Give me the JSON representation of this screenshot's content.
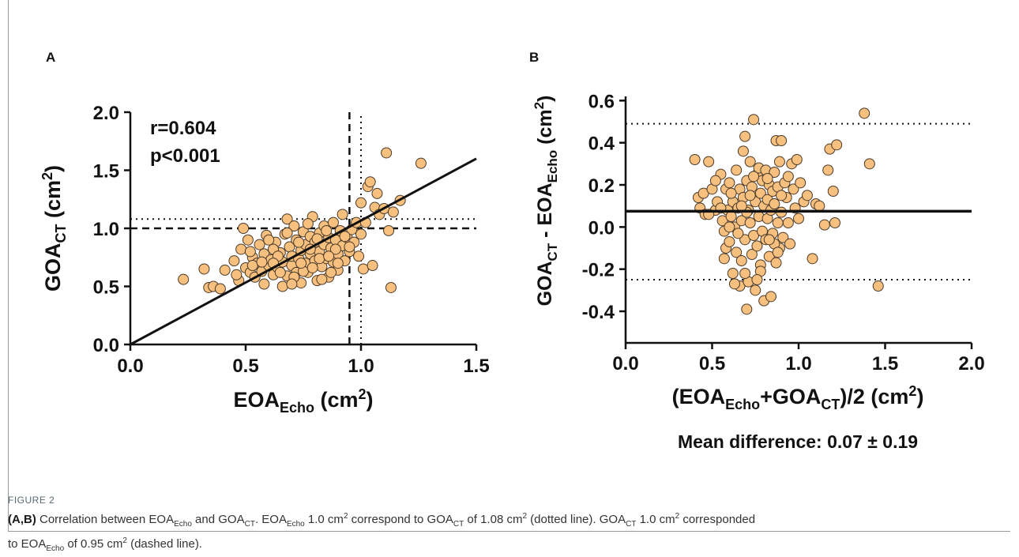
{
  "figure": {
    "label": "FIGURE 2",
    "caption_panels": "(A,B)",
    "caption_parts": {
      "p1": "Correlation between EOA",
      "p1_sub": "Echo",
      "p2": " and GOA",
      "p2_sub": "CT",
      "p3": ". EOA",
      "p3_sub": "Echo",
      "p4": " 1.0 cm",
      "p4_sup": "2",
      "p5": " correspond to GOA",
      "p5_sub": "CT",
      "p6": " of 1.08 cm",
      "p6_sup": "2",
      "p7": " (dotted line). GOA",
      "p7_sub": "CT",
      "p8": " 1.0 cm",
      "p8_sup": "2",
      "p9": " corresponded",
      "p10": "to EOA",
      "p10_sub": "Echo",
      "p11": " of 0.95 cm",
      "p11_sup": "2",
      "p12": " (dashed line)."
    }
  },
  "colors": {
    "point_fill": "#f7c07e",
    "point_stroke": "#4a3a2a",
    "axis": "#111111"
  },
  "chart_data": [
    {
      "panel": "A",
      "type": "scatter",
      "annotations": [
        "r=0.604",
        "p<0.001"
      ],
      "xlabel": {
        "main": "EOA",
        "sub": "Echo",
        "unit": " (cm",
        "sup": "2",
        "close": ")"
      },
      "ylabel": {
        "main": "GOA",
        "sub": "CT",
        "unit": " (cm",
        "sup": "2",
        "close": ")"
      },
      "xlim": [
        0,
        1.5
      ],
      "ylim": [
        0,
        2.0
      ],
      "xticks": [
        "0.0",
        "0.5",
        "1.0",
        "1.5"
      ],
      "yticks": [
        "0.0",
        "0.5",
        "1.0",
        "1.5",
        "2.0"
      ],
      "fit_line": [
        [
          0,
          0
        ],
        [
          1.5,
          1.6
        ]
      ],
      "dotted_lines": {
        "x": 1.0,
        "y": 1.08
      },
      "dashed_lines": {
        "x": 0.95,
        "y": 1.0
      },
      "points": [
        [
          0.23,
          0.56
        ],
        [
          0.32,
          0.65
        ],
        [
          0.34,
          0.49
        ],
        [
          0.36,
          0.5
        ],
        [
          0.39,
          0.48
        ],
        [
          0.41,
          0.64
        ],
        [
          0.45,
          0.72
        ],
        [
          0.47,
          0.55
        ],
        [
          0.48,
          0.82
        ],
        [
          0.49,
          1.0
        ],
        [
          0.5,
          0.66
        ],
        [
          0.51,
          0.9
        ],
        [
          0.52,
          0.62
        ],
        [
          0.53,
          0.75
        ],
        [
          0.54,
          0.58
        ],
        [
          0.55,
          0.7
        ],
        [
          0.56,
          0.86
        ],
        [
          0.57,
          0.63
        ],
        [
          0.58,
          0.78
        ],
        [
          0.59,
          0.94
        ],
        [
          0.6,
          0.68
        ],
        [
          0.61,
          0.73
        ],
        [
          0.62,
          0.6
        ],
        [
          0.63,
          0.88
        ],
        [
          0.64,
          0.66
        ],
        [
          0.65,
          0.79
        ],
        [
          0.66,
          0.71
        ],
        [
          0.67,
          0.95
        ],
        [
          0.68,
          1.08
        ],
        [
          0.68,
          0.59
        ],
        [
          0.69,
          0.84
        ],
        [
          0.7,
          0.68
        ],
        [
          0.7,
          0.76
        ],
        [
          0.71,
          1.02
        ],
        [
          0.72,
          0.9
        ],
        [
          0.72,
          0.62
        ],
        [
          0.73,
          0.74
        ],
        [
          0.74,
          0.53
        ],
        [
          0.74,
          0.81
        ],
        [
          0.75,
          0.97
        ],
        [
          0.76,
          0.7
        ],
        [
          0.76,
          0.86
        ],
        [
          0.77,
          0.62
        ],
        [
          0.78,
          0.93
        ],
        [
          0.78,
          0.78
        ],
        [
          0.79,
          1.1
        ],
        [
          0.8,
          0.72
        ],
        [
          0.8,
          0.88
        ],
        [
          0.81,
          0.55
        ],
        [
          0.82,
          0.96
        ],
        [
          0.82,
          0.8
        ],
        [
          0.83,
          0.67
        ],
        [
          0.84,
          1.02
        ],
        [
          0.84,
          0.86
        ],
        [
          0.85,
          0.74
        ],
        [
          0.86,
          0.92
        ],
        [
          0.86,
          0.58
        ],
        [
          0.87,
          0.83
        ],
        [
          0.88,
          1.05
        ],
        [
          0.88,
          0.71
        ],
        [
          0.89,
          0.9
        ],
        [
          0.9,
          0.78
        ],
        [
          0.9,
          0.64
        ],
        [
          0.91,
          0.98
        ],
        [
          0.92,
          0.85
        ],
        [
          0.92,
          1.12
        ],
        [
          0.93,
          0.72
        ],
        [
          0.94,
          0.92
        ],
        [
          0.95,
          0.8
        ],
        [
          0.96,
          0.99
        ],
        [
          0.97,
          0.88
        ],
        [
          0.98,
          1.05
        ],
        [
          0.99,
          0.76
        ],
        [
          1.0,
          0.95
        ],
        [
          1.0,
          1.22
        ],
        [
          1.01,
          0.65
        ],
        [
          1.02,
          1.05
        ],
        [
          1.03,
          1.36
        ],
        [
          1.04,
          1.4
        ],
        [
          1.05,
          0.68
        ],
        [
          1.06,
          1.18
        ],
        [
          1.07,
          1.3
        ],
        [
          1.08,
          1.12
        ],
        [
          1.1,
          1.17
        ],
        [
          1.11,
          1.65
        ],
        [
          1.12,
          0.98
        ],
        [
          1.13,
          0.49
        ],
        [
          1.14,
          1.14
        ],
        [
          1.17,
          1.24
        ],
        [
          1.26,
          1.56
        ],
        [
          0.58,
          0.52
        ],
        [
          0.62,
          0.82
        ],
        [
          0.66,
          0.5
        ],
        [
          0.71,
          0.58
        ],
        [
          0.75,
          0.63
        ],
        [
          0.79,
          0.66
        ],
        [
          0.83,
          0.56
        ],
        [
          0.87,
          0.62
        ],
        [
          0.53,
          0.68
        ],
        [
          0.57,
          0.71
        ],
        [
          0.64,
          0.76
        ],
        [
          0.68,
          0.96
        ],
        [
          0.73,
          0.88
        ],
        [
          0.77,
          1.04
        ],
        [
          0.81,
          0.91
        ],
        [
          0.85,
          0.98
        ],
        [
          0.89,
          0.82
        ],
        [
          0.93,
          0.93
        ],
        [
          0.46,
          0.6
        ],
        [
          0.52,
          0.8
        ],
        [
          0.6,
          0.9
        ],
        [
          0.65,
          0.62
        ],
        [
          0.7,
          0.52
        ],
        [
          0.74,
          0.7
        ],
        [
          0.78,
          0.82
        ],
        [
          0.82,
          0.74
        ],
        [
          0.86,
          0.76
        ],
        [
          0.9,
          0.7
        ],
        [
          0.95,
          0.84
        ],
        [
          0.62,
          0.7
        ]
      ]
    },
    {
      "panel": "B",
      "type": "scatter",
      "title": "",
      "note": "Mean difference: 0.07 ± 0.19",
      "xlabel": {
        "open": "(",
        "a": "EOA",
        "a_sub": "Echo",
        "plus": "+",
        "b": "GOA",
        "b_sub": "CT",
        "tail": ")/2 (cm",
        "sup": "2",
        "close": ")"
      },
      "ylabel": {
        "a": "GOA",
        "a_sub": "CT",
        "mid": " - ",
        "b": "EOA",
        "b_sub": "Echo",
        "unit": " (cm",
        "sup": "2",
        "close": ")"
      },
      "xlim": [
        0,
        2.0
      ],
      "ylim": [
        -0.55,
        0.62
      ],
      "xticks": [
        "0.0",
        "0.5",
        "1.0",
        "1.5",
        "2.0"
      ],
      "yticks": [
        "-0.4",
        "-0.2",
        "0.0",
        "0.2",
        "0.4",
        "0.6"
      ],
      "mean_line": 0.075,
      "loa_lines": [
        0.49,
        -0.25
      ],
      "points": [
        [
          0.4,
          0.32
        ],
        [
          0.42,
          0.14
        ],
        [
          0.43,
          0.09
        ],
        [
          0.45,
          0.16
        ],
        [
          0.46,
          0.06
        ],
        [
          0.48,
          0.31
        ],
        [
          0.5,
          0.18
        ],
        [
          0.52,
          0.08
        ],
        [
          0.53,
          0.12
        ],
        [
          0.55,
          0.25
        ],
        [
          0.56,
          0.03
        ],
        [
          0.57,
          -0.02
        ],
        [
          0.58,
          0.18
        ],
        [
          0.58,
          -0.1
        ],
        [
          0.59,
          0.08
        ],
        [
          0.6,
          -0.07
        ],
        [
          0.6,
          0.21
        ],
        [
          0.61,
          0.05
        ],
        [
          0.62,
          -0.22
        ],
        [
          0.62,
          0.12
        ],
        [
          0.63,
          0.0
        ],
        [
          0.64,
          0.27
        ],
        [
          0.64,
          -0.12
        ],
        [
          0.65,
          0.09
        ],
        [
          0.66,
          -0.28
        ],
        [
          0.66,
          0.18
        ],
        [
          0.67,
          0.03
        ],
        [
          0.67,
          -0.16
        ],
        [
          0.68,
          0.36
        ],
        [
          0.68,
          0.14
        ],
        [
          0.69,
          -0.06
        ],
        [
          0.69,
          0.43
        ],
        [
          0.7,
          0.22
        ],
        [
          0.7,
          -0.39
        ],
        [
          0.71,
          0.08
        ],
        [
          0.71,
          -0.26
        ],
        [
          0.72,
          0.31
        ],
        [
          0.72,
          0.02
        ],
        [
          0.73,
          -0.13
        ],
        [
          0.73,
          0.19
        ],
        [
          0.74,
          0.51
        ],
        [
          0.74,
          -0.04
        ],
        [
          0.75,
          0.12
        ],
        [
          0.75,
          -0.3
        ],
        [
          0.76,
          0.25
        ],
        [
          0.76,
          -0.09
        ],
        [
          0.77,
          0.05
        ],
        [
          0.77,
          0.28
        ],
        [
          0.78,
          -0.18
        ],
        [
          0.78,
          0.16
        ],
        [
          0.79,
          -0.02
        ],
        [
          0.79,
          0.22
        ],
        [
          0.8,
          0.1
        ],
        [
          0.8,
          -0.35
        ],
        [
          0.81,
          0.27
        ],
        [
          0.81,
          -0.06
        ],
        [
          0.82,
          0.13
        ],
        [
          0.82,
          0.04
        ],
        [
          0.83,
          -0.14
        ],
        [
          0.83,
          0.2
        ],
        [
          0.84,
          0.08
        ],
        [
          0.84,
          -0.33
        ],
        [
          0.85,
          0.17
        ],
        [
          0.85,
          -0.03
        ],
        [
          0.86,
          0.26
        ],
        [
          0.86,
          0.11
        ],
        [
          0.87,
          -0.17
        ],
        [
          0.87,
          0.41
        ],
        [
          0.88,
          0.02
        ],
        [
          0.88,
          0.19
        ],
        [
          0.89,
          -0.1
        ],
        [
          0.89,
          0.31
        ],
        [
          0.9,
          0.07
        ],
        [
          0.9,
          0.41
        ],
        [
          0.91,
          -0.05
        ],
        [
          0.92,
          0.21
        ],
        [
          0.93,
          0.14
        ],
        [
          0.94,
          0.02
        ],
        [
          0.95,
          -0.08
        ],
        [
          0.96,
          0.3
        ],
        [
          0.97,
          0.18
        ],
        [
          0.98,
          0.09
        ],
        [
          0.99,
          0.32
        ],
        [
          1.0,
          0.04
        ],
        [
          1.01,
          0.21
        ],
        [
          1.03,
          0.12
        ],
        [
          1.05,
          0.15
        ],
        [
          1.08,
          -0.15
        ],
        [
          1.1,
          0.11
        ],
        [
          1.12,
          0.1
        ],
        [
          1.15,
          0.01
        ],
        [
          1.17,
          0.27
        ],
        [
          1.18,
          0.37
        ],
        [
          1.2,
          0.17
        ],
        [
          1.21,
          0.02
        ],
        [
          1.22,
          0.39
        ],
        [
          1.38,
          0.54
        ],
        [
          1.41,
          0.3
        ],
        [
          1.46,
          -0.28
        ],
        [
          0.48,
          0.06
        ],
        [
          0.52,
          0.22
        ],
        [
          0.57,
          -0.15
        ],
        [
          0.61,
          0.16
        ],
        [
          0.65,
          -0.03
        ],
        [
          0.7,
          0.07
        ],
        [
          0.74,
          0.24
        ],
        [
          0.78,
          -0.21
        ],
        [
          0.82,
          0.23
        ],
        [
          0.86,
          -0.08
        ],
        [
          0.9,
          0.15
        ],
        [
          0.63,
          -0.27
        ],
        [
          0.69,
          -0.22
        ],
        [
          0.76,
          -0.25
        ],
        [
          0.83,
          -0.06
        ],
        [
          0.88,
          -0.12
        ],
        [
          0.94,
          0.24
        ],
        [
          0.55,
          0.09
        ],
        [
          0.6,
          0.0
        ],
        [
          0.67,
          0.1
        ],
        [
          0.72,
          0.15
        ]
      ]
    }
  ]
}
